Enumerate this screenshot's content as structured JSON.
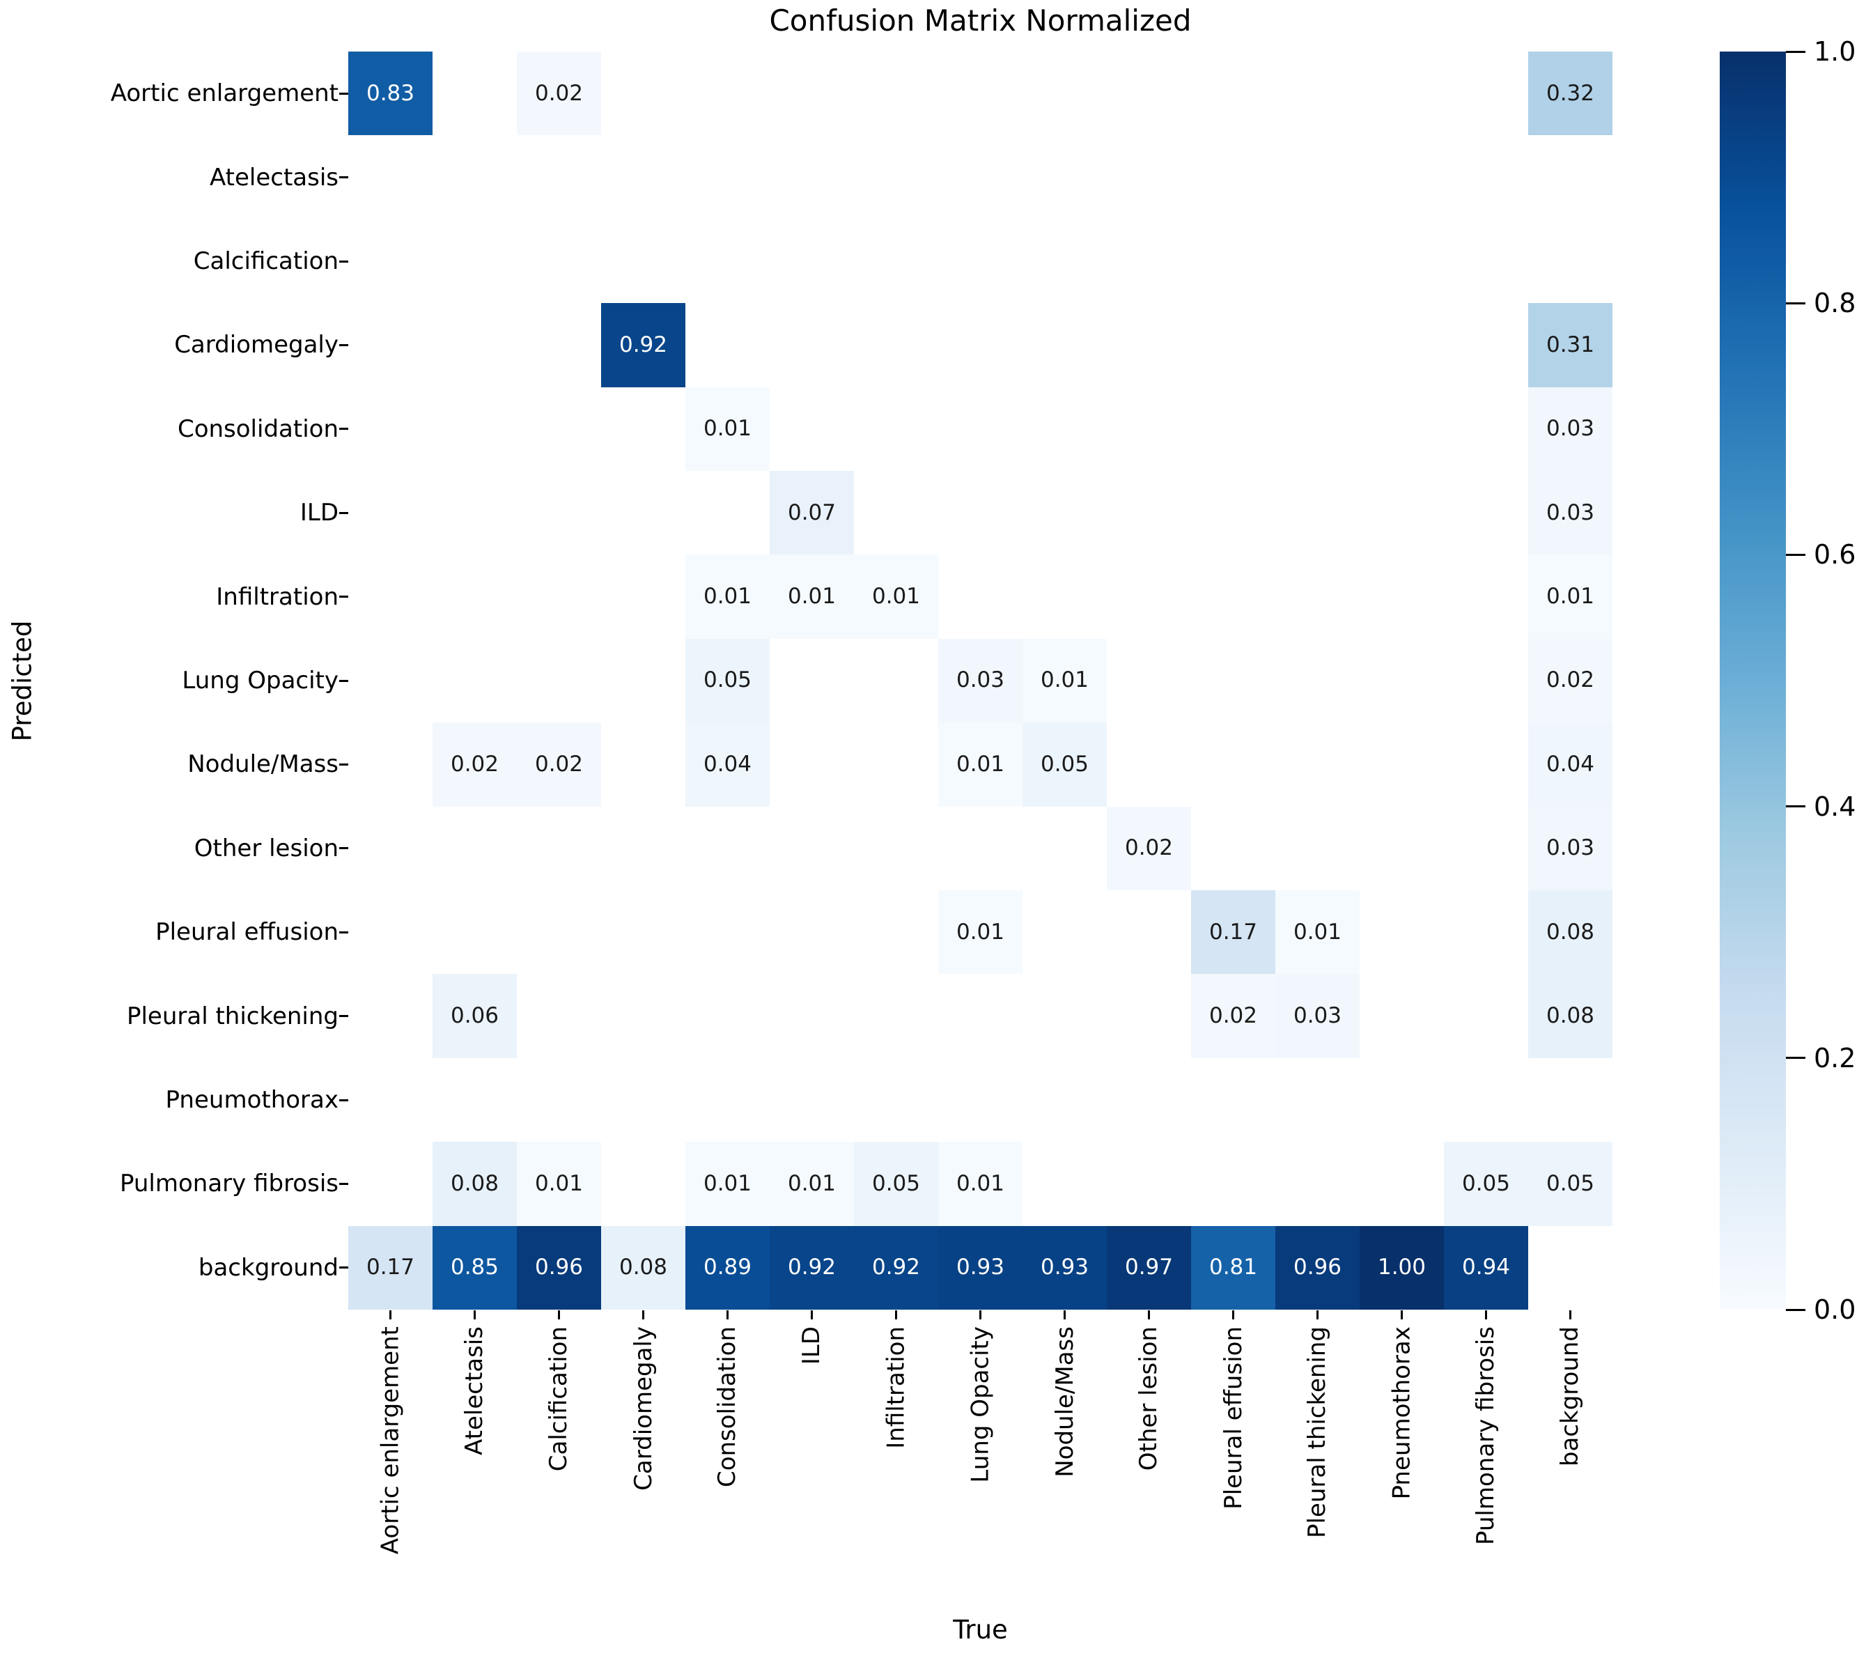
{
  "title": "Confusion Matrix Normalized",
  "chart_data": {
    "type": "heatmap",
    "title": "Confusion Matrix Normalized",
    "xlabel": "True",
    "ylabel": "Predicted",
    "x_categories": [
      "Aortic enlargement",
      "Atelectasis",
      "Calcification",
      "Cardiomegaly",
      "Consolidation",
      "ILD",
      "Infiltration",
      "Lung Opacity",
      "Nodule/Mass",
      "Other lesion",
      "Pleural effusion",
      "Pleural thickening",
      "Pneumothorax",
      "Pulmonary fibrosis",
      "background"
    ],
    "y_categories": [
      "Aortic enlargement",
      "Atelectasis",
      "Calcification",
      "Cardiomegaly",
      "Consolidation",
      "ILD",
      "Infiltration",
      "Lung Opacity",
      "Nodule/Mass",
      "Other lesion",
      "Pleural effusion",
      "Pleural thickening",
      "Pneumothorax",
      "Pulmonary fibrosis",
      "background"
    ],
    "matrix": [
      [
        0.83,
        null,
        0.02,
        null,
        null,
        null,
        null,
        null,
        null,
        null,
        null,
        null,
        null,
        null,
        0.32
      ],
      [
        null,
        null,
        null,
        null,
        null,
        null,
        null,
        null,
        null,
        null,
        null,
        null,
        null,
        null,
        null
      ],
      [
        null,
        null,
        null,
        null,
        null,
        null,
        null,
        null,
        null,
        null,
        null,
        null,
        null,
        null,
        null
      ],
      [
        null,
        null,
        null,
        0.92,
        null,
        null,
        null,
        null,
        null,
        null,
        null,
        null,
        null,
        null,
        0.31
      ],
      [
        null,
        null,
        null,
        null,
        0.01,
        null,
        null,
        null,
        null,
        null,
        null,
        null,
        null,
        null,
        0.03
      ],
      [
        null,
        null,
        null,
        null,
        null,
        0.07,
        null,
        null,
        null,
        null,
        null,
        null,
        null,
        null,
        0.03
      ],
      [
        null,
        null,
        null,
        null,
        0.01,
        0.01,
        0.01,
        null,
        null,
        null,
        null,
        null,
        null,
        null,
        0.01
      ],
      [
        null,
        null,
        null,
        null,
        0.05,
        null,
        null,
        0.03,
        0.01,
        null,
        null,
        null,
        null,
        null,
        0.02
      ],
      [
        null,
        0.02,
        0.02,
        null,
        0.04,
        null,
        null,
        0.01,
        0.05,
        null,
        null,
        null,
        null,
        null,
        0.04
      ],
      [
        null,
        null,
        null,
        null,
        null,
        null,
        null,
        null,
        null,
        0.02,
        null,
        null,
        null,
        null,
        0.03
      ],
      [
        null,
        null,
        null,
        null,
        null,
        null,
        null,
        0.01,
        null,
        null,
        0.17,
        0.01,
        null,
        null,
        0.08
      ],
      [
        null,
        0.06,
        null,
        null,
        null,
        null,
        null,
        null,
        null,
        null,
        0.02,
        0.03,
        null,
        null,
        0.08
      ],
      [
        null,
        null,
        null,
        null,
        null,
        null,
        null,
        null,
        null,
        null,
        null,
        null,
        null,
        null,
        null
      ],
      [
        null,
        0.08,
        0.01,
        null,
        0.01,
        0.01,
        0.05,
        0.01,
        null,
        null,
        null,
        null,
        null,
        0.05,
        0.05
      ],
      [
        0.17,
        0.85,
        0.96,
        0.08,
        0.89,
        0.92,
        0.92,
        0.93,
        0.93,
        0.97,
        0.81,
        0.96,
        1.0,
        0.94,
        null
      ]
    ],
    "value_format_decimals": 2,
    "colorbar": {
      "min": 0.0,
      "max": 1.0,
      "ticks": [
        0.0,
        0.2,
        0.4,
        0.6,
        0.8,
        1.0
      ],
      "tick_labels": [
        "0.0",
        "0.2",
        "0.4",
        "0.6",
        "0.8",
        "1.0"
      ]
    },
    "colormap": {
      "name": "Blues",
      "stops": [
        {
          "t": 0.0,
          "color": "#f7fbff"
        },
        {
          "t": 0.125,
          "color": "#deebf7"
        },
        {
          "t": 0.25,
          "color": "#c6dbef"
        },
        {
          "t": 0.375,
          "color": "#9ecae1"
        },
        {
          "t": 0.5,
          "color": "#6baed6"
        },
        {
          "t": 0.625,
          "color": "#4292c6"
        },
        {
          "t": 0.75,
          "color": "#2171b5"
        },
        {
          "t": 0.875,
          "color": "#08519c"
        },
        {
          "t": 1.0,
          "color": "#08306b"
        }
      ]
    },
    "empty_cell_color": "#ffffff",
    "annot_light_text_color": "#ffffff",
    "annot_dark_text_color": "#1a1a1a",
    "annot_text_threshold": 0.5,
    "grid": false,
    "legend_position": "right-colorbar"
  }
}
